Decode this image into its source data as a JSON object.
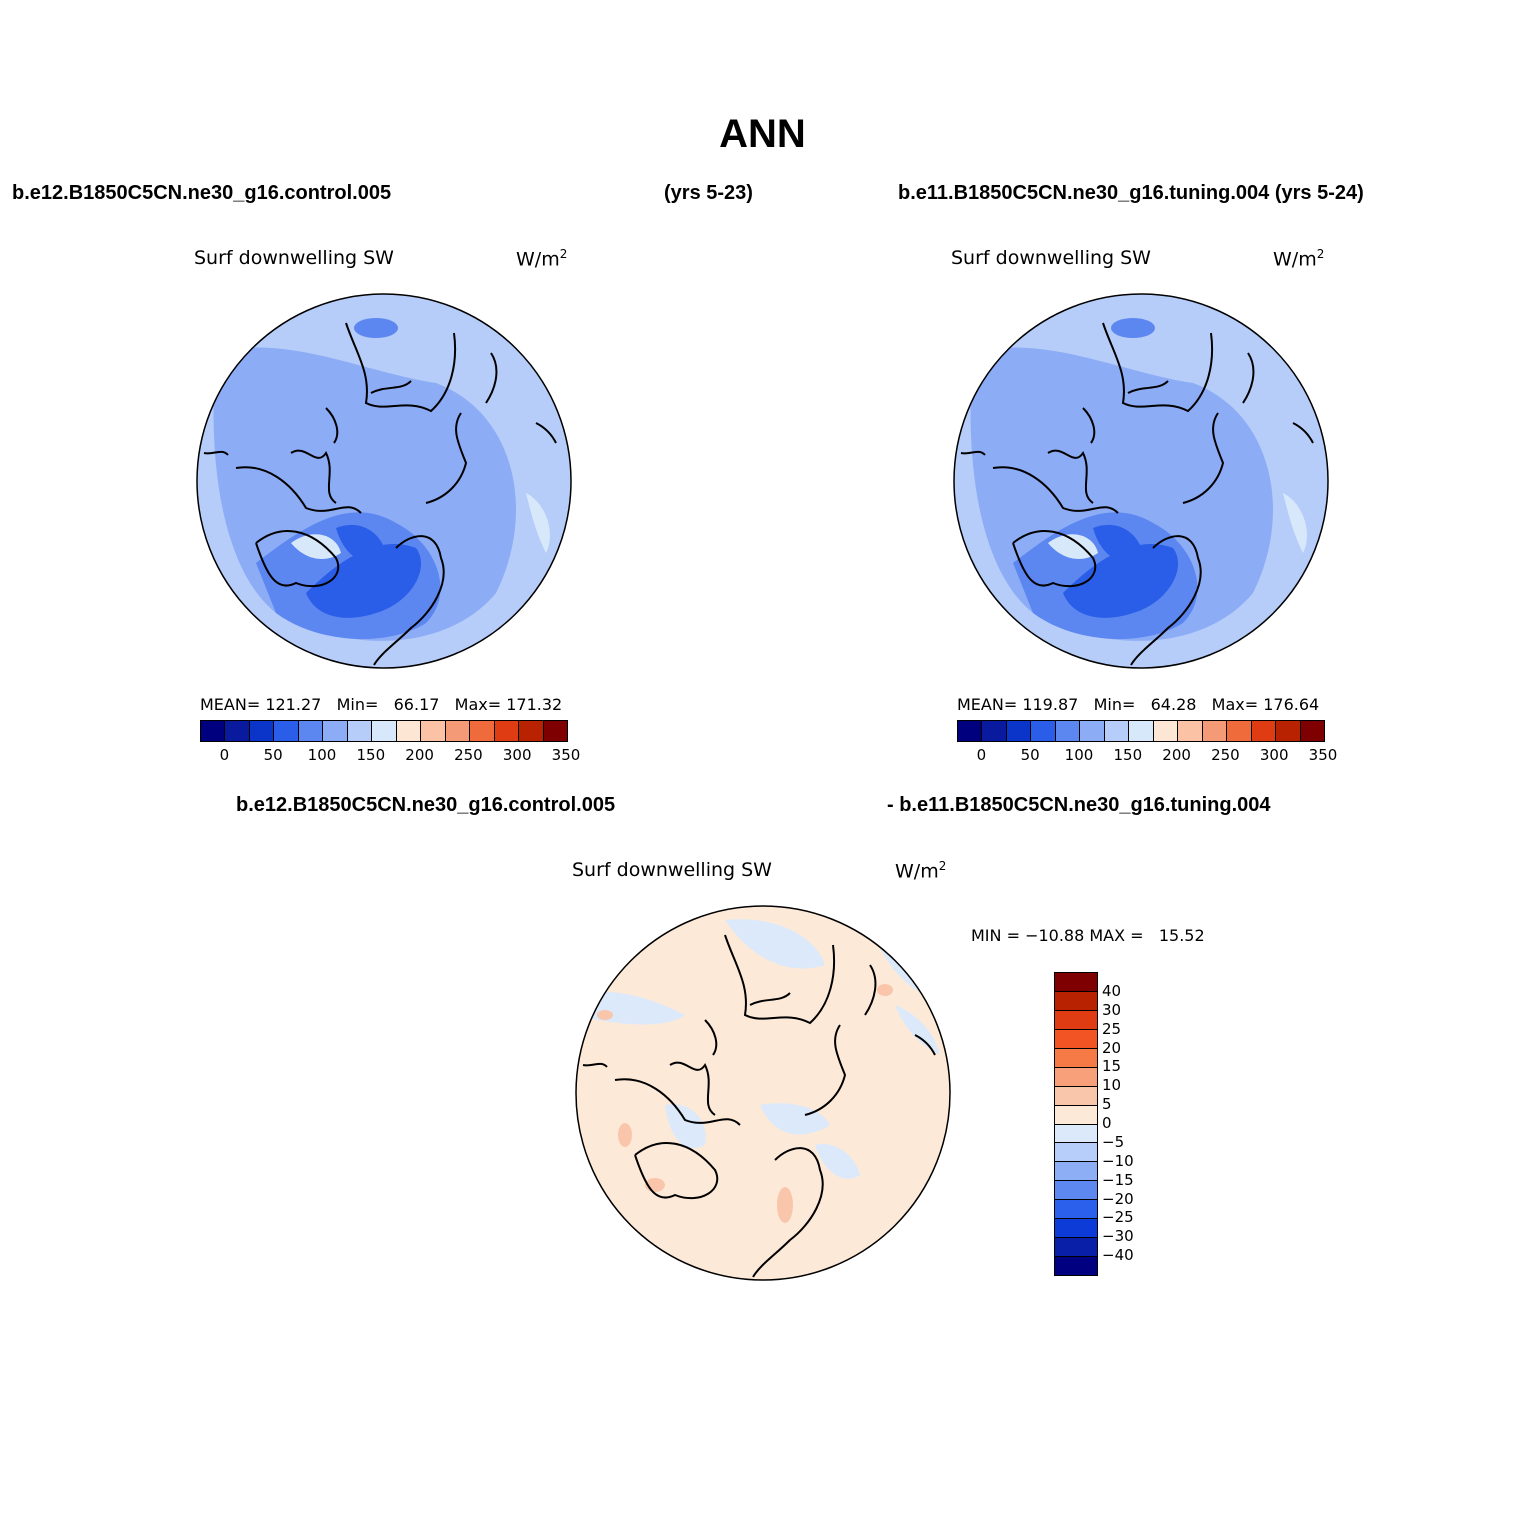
{
  "title": "ANN",
  "panels": [
    {
      "case": "b.e12.B1850C5CN.ne30_g16.control.005",
      "years": "(yrs 5-23)",
      "variable": "Surf downwelling SW",
      "units": "W/m",
      "units_sup": "2",
      "stats": "MEAN= 121.27   Min=   66.17   Max= 171.32"
    },
    {
      "case": "b.e11.B1850C5CN.ne30_g16.tuning.004 (yrs 5-24)",
      "variable": "Surf downwelling SW",
      "units": "W/m",
      "units_sup": "2",
      "stats": "MEAN= 119.87   Min=   64.28   Max= 176.64"
    }
  ],
  "diff_panel": {
    "case_a": "b.e12.B1850C5CN.ne30_g16.control.005",
    "case_b": "- b.e11.B1850C5CN.ne30_g16.tuning.004",
    "variable": "Surf downwelling SW",
    "units": "W/m",
    "units_sup": "2",
    "stats": "MIN = −10.88 MAX =   15.52"
  },
  "colorbar_abs": {
    "colors": [
      "#00007f",
      "#0a1a9e",
      "#0b34c8",
      "#2a5ee8",
      "#5c86f0",
      "#8cacf5",
      "#b6cdf9",
      "#d8e8fb",
      "#fde6d4",
      "#fbc2a6",
      "#f59a76",
      "#f06b3c",
      "#e03c14",
      "#b82200",
      "#7e0000"
    ],
    "ticks": [
      "0",
      "50",
      "100",
      "150",
      "200",
      "250",
      "300",
      "350"
    ]
  },
  "colorbar_diff": {
    "colors": [
      "#7e0000",
      "#b82200",
      "#e03c14",
      "#f25424",
      "#f57a45",
      "#f7a07a",
      "#f9c6ab",
      "#fde9d8",
      "#dbe9fb",
      "#b7cefa",
      "#8daef5",
      "#5d88ef",
      "#2a60eb",
      "#0d3bd8",
      "#0a1fa8",
      "#000080"
    ],
    "ticks": [
      "40",
      "30",
      "25",
      "20",
      "15",
      "10",
      "5",
      "0",
      "−5",
      "−10",
      "−15",
      "−20",
      "−25",
      "−30",
      "−40"
    ]
  },
  "map_colors": {
    "ocean_light": "#b6cdf9",
    "mid": "#8cacf5",
    "dark": "#5c86f0",
    "darker": "#2a5ee8",
    "palest": "#d8e8fb",
    "diff_bg": "#fde9d8",
    "diff_blue": "#dbe9fb",
    "diff_orange": "#f9c6ab"
  }
}
